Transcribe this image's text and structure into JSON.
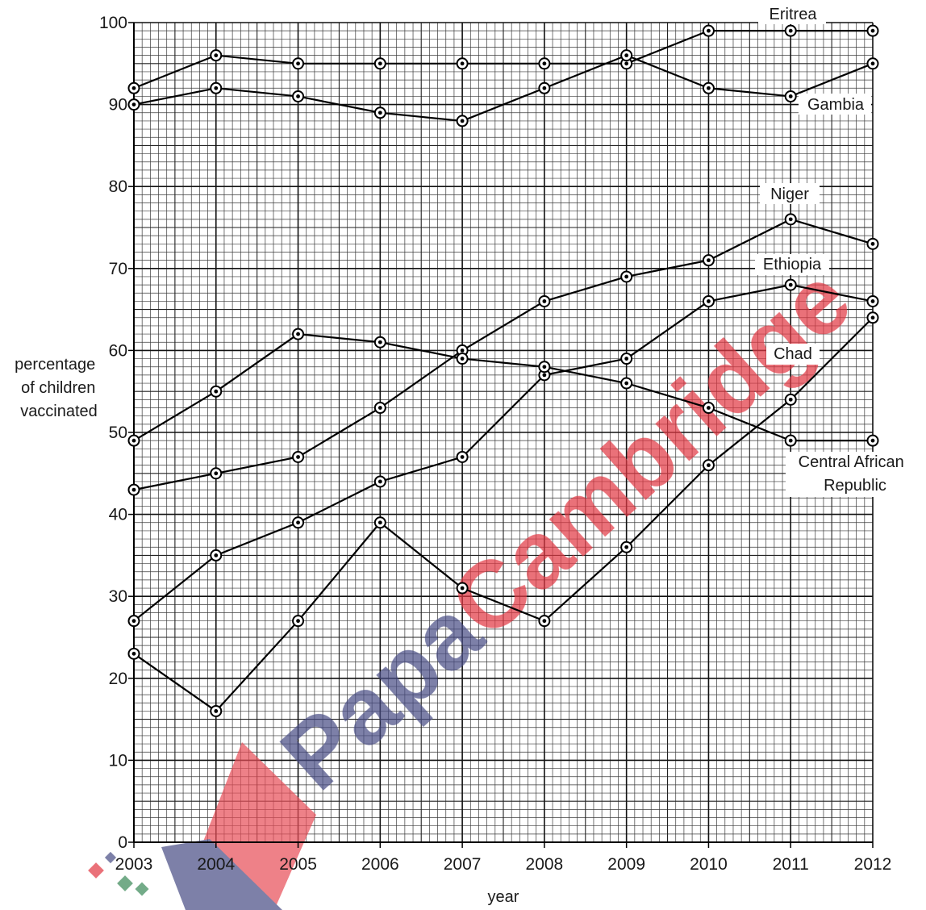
{
  "watermark": {
    "part1": "Papa",
    "part2": "Cambridge",
    "color1": "#4a4f86",
    "color2": "#e23a45"
  },
  "chart_data": {
    "type": "line",
    "xlabel": "year",
    "ylabel_lines": [
      "percentage",
      "of children",
      "vaccinated"
    ],
    "categories": [
      "2003",
      "2004",
      "2005",
      "2006",
      "2007",
      "2008",
      "2009",
      "2010",
      "2011",
      "2012"
    ],
    "ylim": [
      0,
      100
    ],
    "yticks": [
      0,
      10,
      20,
      30,
      40,
      50,
      60,
      70,
      80,
      90,
      100
    ],
    "grid": true,
    "series": [
      {
        "name": "Eritrea",
        "values": [
          92,
          96,
          95,
          95,
          95,
          95,
          95,
          99,
          99,
          99
        ]
      },
      {
        "name": "Gambia",
        "values": [
          90,
          92,
          91,
          89,
          88,
          92,
          96,
          92,
          91,
          95
        ]
      },
      {
        "name": "Niger",
        "values": [
          43,
          45,
          47,
          53,
          60,
          66,
          69,
          71,
          76,
          73
        ]
      },
      {
        "name": "Ethiopia",
        "values": [
          27,
          35,
          39,
          44,
          47,
          57,
          59,
          66,
          68,
          66
        ]
      },
      {
        "name": "Chad",
        "values": [
          23,
          16,
          27,
          39,
          31,
          27,
          36,
          46,
          54,
          64
        ]
      },
      {
        "name": "Central African Republic",
        "name_lines": [
          "Central African",
          "Republic"
        ],
        "values": [
          49,
          55,
          62,
          61,
          59,
          58,
          56,
          53,
          49,
          49
        ]
      }
    ]
  }
}
